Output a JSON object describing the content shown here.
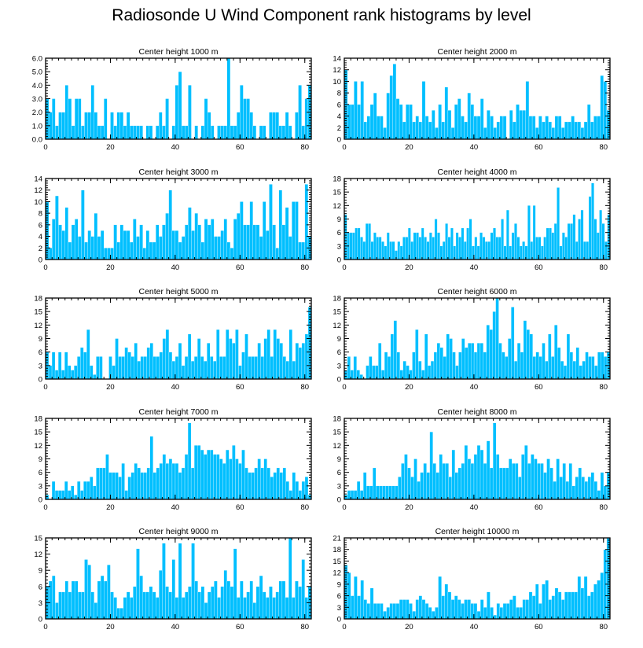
{
  "figure_title": "Radiosonde U Wind Component rank histograms by level",
  "colors": {
    "bar": "#00bfff",
    "bar_edge": "#ffffff",
    "axis": "#000000",
    "background": "#ffffff"
  },
  "chart_data": [
    {
      "type": "bar",
      "title": "Center height 1000 m",
      "xlabel": "",
      "ylabel": "",
      "xlim": [
        0,
        82
      ],
      "ylim": [
        0,
        6
      ],
      "xticks": [
        0,
        20,
        40,
        60,
        80
      ],
      "xtick_labels": [
        "0",
        "20",
        "40",
        "60",
        "80"
      ],
      "yticks": [
        0,
        1,
        2,
        3,
        4,
        5,
        6
      ],
      "ytick_labels": [
        "0.0",
        "1.0",
        "2.0",
        "3.0",
        "4.0",
        "5.0",
        "6.0"
      ],
      "values": [
        3,
        2,
        3,
        1,
        2,
        2,
        4,
        3,
        1,
        3,
        3,
        1,
        2,
        2,
        4,
        2,
        1,
        1,
        3,
        0,
        2,
        1,
        2,
        2,
        1,
        2,
        1,
        1,
        1,
        1,
        0,
        1,
        1,
        0,
        1,
        2,
        1,
        3,
        0,
        1,
        4,
        5,
        1,
        1,
        4,
        0,
        1,
        0,
        1,
        3,
        2,
        1,
        0,
        1,
        1,
        1,
        6,
        1,
        1,
        2,
        4,
        3,
        3,
        2,
        1,
        0,
        1,
        1,
        0,
        2,
        2,
        2,
        1,
        1,
        2,
        1,
        0,
        2,
        4,
        1,
        3,
        4
      ]
    },
    {
      "type": "bar",
      "title": "Center height 2000 m",
      "xlabel": "",
      "ylabel": "",
      "xlim": [
        0,
        82
      ],
      "ylim": [
        0,
        14
      ],
      "xticks": [
        0,
        20,
        40,
        60,
        80
      ],
      "xtick_labels": [
        "0",
        "20",
        "40",
        "60",
        "80"
      ],
      "yticks": [
        0,
        2,
        4,
        6,
        8,
        10,
        12,
        14
      ],
      "ytick_labels": [
        "0",
        "2",
        "4",
        "6",
        "8",
        "10",
        "12",
        "14"
      ],
      "values": [
        12,
        6,
        6,
        10,
        6,
        10,
        3,
        4,
        6,
        8,
        4,
        4,
        2,
        8,
        11,
        13,
        7,
        6,
        3,
        6,
        6,
        3,
        4,
        3,
        10,
        4,
        3,
        5,
        2,
        6,
        3,
        9,
        5,
        2,
        6,
        7,
        4,
        3,
        8,
        6,
        4,
        4,
        7,
        2,
        5,
        4,
        2,
        3,
        4,
        4,
        0,
        5,
        3,
        6,
        5,
        5,
        10,
        4,
        4,
        2,
        4,
        3,
        4,
        3,
        2,
        4,
        4,
        2,
        3,
        3,
        4,
        3,
        3,
        2,
        3,
        6,
        3,
        4,
        4,
        11,
        10,
        5
      ]
    },
    {
      "type": "bar",
      "title": "Center height 3000 m",
      "xlabel": "",
      "ylabel": "",
      "xlim": [
        0,
        82
      ],
      "ylim": [
        0,
        14
      ],
      "xticks": [
        0,
        20,
        40,
        60,
        80
      ],
      "xtick_labels": [
        "0",
        "20",
        "40",
        "60",
        "80"
      ],
      "yticks": [
        0,
        2,
        4,
        6,
        8,
        10,
        12,
        14
      ],
      "ytick_labels": [
        "0",
        "2",
        "4",
        "6",
        "8",
        "10",
        "12",
        "14"
      ],
      "values": [
        10,
        2,
        7,
        11,
        6,
        5,
        9,
        3,
        6,
        7,
        4,
        12,
        3,
        5,
        4,
        8,
        4,
        5,
        2,
        2,
        2,
        6,
        3,
        6,
        5,
        5,
        3,
        7,
        4,
        6,
        2,
        5,
        3,
        3,
        6,
        4,
        6,
        8,
        12,
        5,
        5,
        3,
        4,
        6,
        9,
        5,
        8,
        6,
        3,
        7,
        6,
        7,
        4,
        4,
        5,
        7,
        3,
        2,
        7,
        8,
        10,
        6,
        6,
        10,
        6,
        6,
        4,
        10,
        5,
        13,
        6,
        2,
        12,
        6,
        9,
        4,
        10,
        10,
        3,
        3,
        13,
        4
      ]
    },
    {
      "type": "bar",
      "title": "Center height 4000 m",
      "xlabel": "",
      "ylabel": "",
      "xlim": [
        0,
        82
      ],
      "ylim": [
        0,
        18
      ],
      "xticks": [
        0,
        20,
        40,
        60,
        80
      ],
      "xtick_labels": [
        "0",
        "20",
        "40",
        "60",
        "80"
      ],
      "yticks": [
        0,
        3,
        6,
        9,
        12,
        15,
        18
      ],
      "ytick_labels": [
        "0",
        "3",
        "6",
        "9",
        "12",
        "15",
        "18"
      ],
      "values": [
        10,
        6,
        6,
        6,
        7,
        7,
        5,
        4,
        8,
        8,
        4,
        6,
        5,
        5,
        4,
        3,
        6,
        4,
        4,
        2,
        4,
        3,
        5,
        5,
        7,
        4,
        6,
        6,
        5,
        7,
        5,
        4,
        6,
        5,
        9,
        6,
        3,
        4,
        8,
        5,
        7,
        3,
        6,
        5,
        7,
        4,
        7,
        9,
        3,
        5,
        3,
        6,
        5,
        4,
        4,
        6,
        7,
        5,
        5,
        9,
        3,
        11,
        3,
        6,
        8,
        5,
        3,
        4,
        3,
        12,
        4,
        12,
        5,
        5,
        3,
        5,
        7,
        7,
        6,
        8,
        16,
        3,
        6,
        5,
        8,
        8,
        10,
        4,
        9,
        11,
        4,
        4,
        14,
        17,
        9,
        6,
        11,
        8,
        4,
        10
      ]
    },
    {
      "type": "bar",
      "title": "Center height 5000 m",
      "xlabel": "",
      "ylabel": "",
      "xlim": [
        0,
        82
      ],
      "ylim": [
        0,
        18
      ],
      "xticks": [
        0,
        20,
        40,
        60,
        80
      ],
      "xtick_labels": [
        "0",
        "20",
        "40",
        "60",
        "80"
      ],
      "yticks": [
        0,
        3,
        6,
        9,
        12,
        15,
        18
      ],
      "ytick_labels": [
        "0",
        "3",
        "6",
        "9",
        "12",
        "15",
        "18"
      ],
      "values": [
        6,
        3,
        6,
        2,
        6,
        2,
        6,
        3,
        2,
        3,
        5,
        7,
        6,
        11,
        3,
        1,
        5,
        5,
        0,
        0,
        5,
        3,
        9,
        5,
        5,
        7,
        6,
        5,
        8,
        4,
        5,
        5,
        7,
        8,
        5,
        5,
        6,
        9,
        11,
        6,
        4,
        5,
        8,
        3,
        5,
        10,
        4,
        5,
        9,
        5,
        4,
        8,
        5,
        4,
        11,
        5,
        5,
        11,
        9,
        8,
        11,
        3,
        6,
        10,
        5,
        5,
        5,
        8,
        5,
        9,
        11,
        5,
        11,
        9,
        8,
        5,
        4,
        11,
        4,
        8,
        7,
        8,
        10,
        16
      ]
    },
    {
      "type": "bar",
      "title": "Center height 6000 m",
      "xlabel": "",
      "ylabel": "",
      "xlim": [
        0,
        82
      ],
      "ylim": [
        0,
        18
      ],
      "xticks": [
        0,
        20,
        40,
        60,
        80
      ],
      "xtick_labels": [
        "0",
        "20",
        "40",
        "60",
        "80"
      ],
      "yticks": [
        0,
        3,
        6,
        9,
        12,
        15,
        18
      ],
      "ytick_labels": [
        "0",
        "3",
        "6",
        "9",
        "12",
        "15",
        "18"
      ],
      "values": [
        2,
        5,
        2,
        5,
        2,
        1,
        0,
        3,
        5,
        3,
        3,
        8,
        2,
        6,
        5,
        10,
        13,
        6,
        2,
        4,
        3,
        2,
        6,
        11,
        4,
        2,
        10,
        3,
        4,
        6,
        8,
        7,
        5,
        10,
        9,
        6,
        3,
        6,
        9,
        7,
        8,
        8,
        6,
        8,
        8,
        6,
        12,
        11,
        15,
        18,
        8,
        6,
        5,
        9,
        16,
        4,
        8,
        6,
        13,
        11,
        10,
        5,
        6,
        5,
        8,
        4,
        10,
        5,
        12,
        7,
        4,
        3,
        10,
        6,
        4,
        7,
        3,
        4,
        6,
        5,
        5,
        3,
        6,
        6,
        5,
        6
      ]
    },
    {
      "type": "bar",
      "title": "Center height 7000 m",
      "xlabel": "",
      "ylabel": "",
      "xlim": [
        0,
        82
      ],
      "ylim": [
        0,
        18
      ],
      "xticks": [
        0,
        20,
        40,
        60,
        80
      ],
      "xtick_labels": [
        "0",
        "20",
        "40",
        "60",
        "80"
      ],
      "yticks": [
        0,
        3,
        6,
        9,
        12,
        15,
        18
      ],
      "ytick_labels": [
        "0",
        "3",
        "6",
        "9",
        "12",
        "15",
        "18"
      ],
      "values": [
        1,
        0,
        4,
        2,
        2,
        2,
        4,
        2,
        3,
        1,
        4,
        2,
        4,
        4,
        5,
        3,
        7,
        7,
        7,
        10,
        6,
        6,
        6,
        5,
        8,
        2,
        5,
        6,
        8,
        7,
        6,
        6,
        7,
        14,
        6,
        7,
        8,
        10,
        8,
        9,
        8,
        8,
        6,
        7,
        10,
        17,
        7,
        12,
        12,
        11,
        10,
        11,
        11,
        10,
        10,
        9,
        8,
        11,
        9,
        12,
        9,
        8,
        11,
        7,
        6,
        6,
        7,
        9,
        7,
        9,
        7,
        5,
        6,
        7,
        6,
        7,
        4,
        2,
        6,
        4,
        2,
        4,
        5,
        1
      ]
    },
    {
      "type": "bar",
      "title": "Center height 8000 m",
      "xlabel": "",
      "ylabel": "",
      "xlim": [
        0,
        82
      ],
      "ylim": [
        0,
        18
      ],
      "xticks": [
        0,
        20,
        40,
        60,
        80
      ],
      "xtick_labels": [
        "0",
        "20",
        "40",
        "60",
        "80"
      ],
      "yticks": [
        0,
        3,
        6,
        9,
        12,
        15,
        18
      ],
      "ytick_labels": [
        "0",
        "3",
        "6",
        "9",
        "12",
        "15",
        "18"
      ],
      "values": [
        1,
        2,
        2,
        2,
        4,
        2,
        6,
        3,
        3,
        7,
        3,
        3,
        3,
        3,
        3,
        3,
        3,
        5,
        8,
        10,
        7,
        5,
        9,
        4,
        6,
        8,
        6,
        15,
        8,
        6,
        10,
        8,
        8,
        5,
        11,
        6,
        7,
        8,
        12,
        9,
        8,
        10,
        12,
        11,
        8,
        13,
        7,
        17,
        10,
        7,
        7,
        7,
        9,
        8,
        8,
        5,
        10,
        12,
        8,
        10,
        9,
        8,
        8,
        6,
        9,
        7,
        4,
        9,
        5,
        8,
        4,
        8,
        3,
        5,
        7,
        5,
        4,
        5,
        6,
        4,
        2,
        6,
        3,
        6
      ]
    },
    {
      "type": "bar",
      "title": "Center height 9000 m",
      "xlabel": "",
      "ylabel": "",
      "xlim": [
        0,
        82
      ],
      "ylim": [
        0,
        15
      ],
      "xticks": [
        0,
        20,
        40,
        60,
        80
      ],
      "xtick_labels": [
        "0",
        "20",
        "40",
        "60",
        "80"
      ],
      "yticks": [
        0,
        3,
        6,
        9,
        12,
        15
      ],
      "ytick_labels": [
        "0",
        "3",
        "6",
        "9",
        "12",
        "15"
      ],
      "values": [
        6,
        7,
        8,
        3,
        5,
        5,
        7,
        5,
        7,
        7,
        5,
        5,
        11,
        10,
        5,
        3,
        7,
        8,
        7,
        10,
        5,
        4,
        2,
        2,
        4,
        5,
        4,
        6,
        13,
        8,
        5,
        5,
        6,
        5,
        4,
        9,
        14,
        6,
        5,
        11,
        4,
        14,
        4,
        5,
        6,
        14,
        7,
        5,
        6,
        3,
        5,
        6,
        7,
        4,
        6,
        9,
        7,
        6,
        13,
        4,
        7,
        4,
        5,
        7,
        3,
        6,
        8,
        5,
        4,
        6,
        4,
        5,
        7,
        7,
        4,
        15,
        4,
        7,
        6,
        11,
        4,
        6
      ]
    },
    {
      "type": "bar",
      "title": "Center height 10000 m",
      "xlabel": "",
      "ylabel": "",
      "xlim": [
        0,
        82
      ],
      "ylim": [
        0,
        21
      ],
      "xticks": [
        0,
        20,
        40,
        60,
        80
      ],
      "xtick_labels": [
        "0",
        "20",
        "40",
        "60",
        "80"
      ],
      "yticks": [
        0,
        3,
        6,
        9,
        12,
        15,
        18,
        21
      ],
      "ytick_labels": [
        "0",
        "3",
        "6",
        "9",
        "12",
        "15",
        "18",
        "21"
      ],
      "values": [
        14,
        12,
        6,
        11,
        6,
        10,
        5,
        4,
        8,
        4,
        4,
        4,
        2,
        3,
        4,
        4,
        4,
        5,
        5,
        5,
        4,
        2,
        5,
        6,
        5,
        4,
        3,
        2,
        3,
        11,
        6,
        9,
        7,
        5,
        6,
        5,
        4,
        5,
        5,
        4,
        4,
        2,
        5,
        3,
        7,
        3,
        1,
        4,
        3,
        4,
        4,
        5,
        6,
        3,
        3,
        5,
        5,
        7,
        6,
        9,
        4,
        9,
        10,
        5,
        6,
        8,
        7,
        5,
        7,
        7,
        7,
        7,
        11,
        8,
        11,
        6,
        7,
        9,
        10,
        12,
        18,
        21
      ]
    }
  ]
}
